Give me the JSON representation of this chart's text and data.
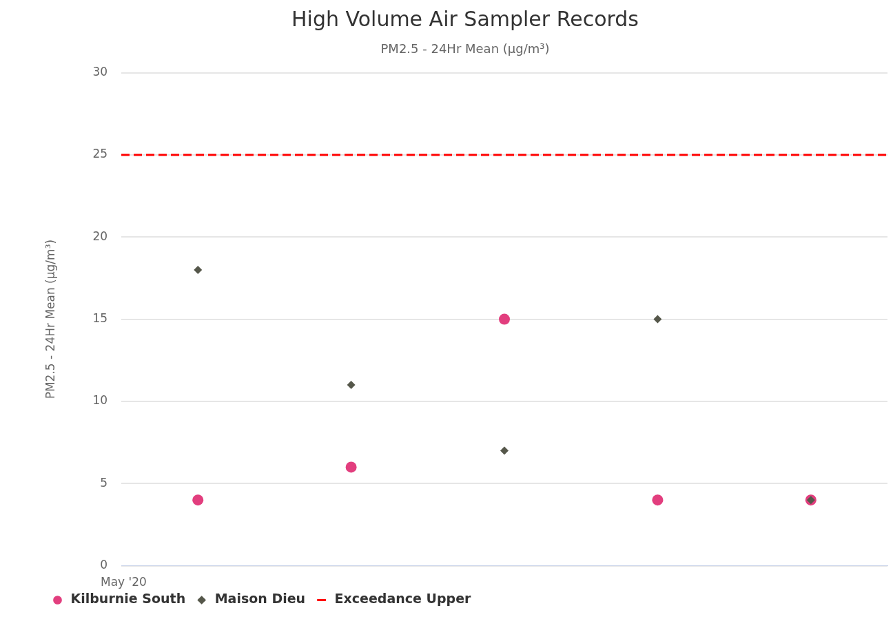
{
  "chart_data": {
    "type": "scatter",
    "title": "High Volume Air Sampler Records",
    "subtitle": "PM2.5 - 24Hr Mean (µg/m³)",
    "ylabel": "PM2.5 - 24Hr Mean (µg/m³)",
    "categories": [
      null,
      null,
      null,
      null,
      null
    ],
    "series": [
      {
        "name": "Kilburnie South",
        "color": "#e23e7e",
        "marker": "circle",
        "values": [
          4,
          6,
          15,
          4,
          4
        ]
      },
      {
        "name": "Maison Dieu",
        "color": "#55574a",
        "marker": "diamond",
        "values": [
          18,
          11,
          7,
          15,
          4
        ]
      }
    ],
    "ref_lines": [
      {
        "axis": "y",
        "value": 25,
        "label": "Exceedance Upper",
        "color": "#ff0000",
        "line_style": "dashed"
      }
    ],
    "annotations": [
      "May '20"
    ],
    "ylim": [
      0,
      30
    ],
    "yticks": [
      0,
      5,
      10,
      15,
      20,
      25,
      30
    ],
    "grid": "y",
    "legend": "bottom"
  }
}
